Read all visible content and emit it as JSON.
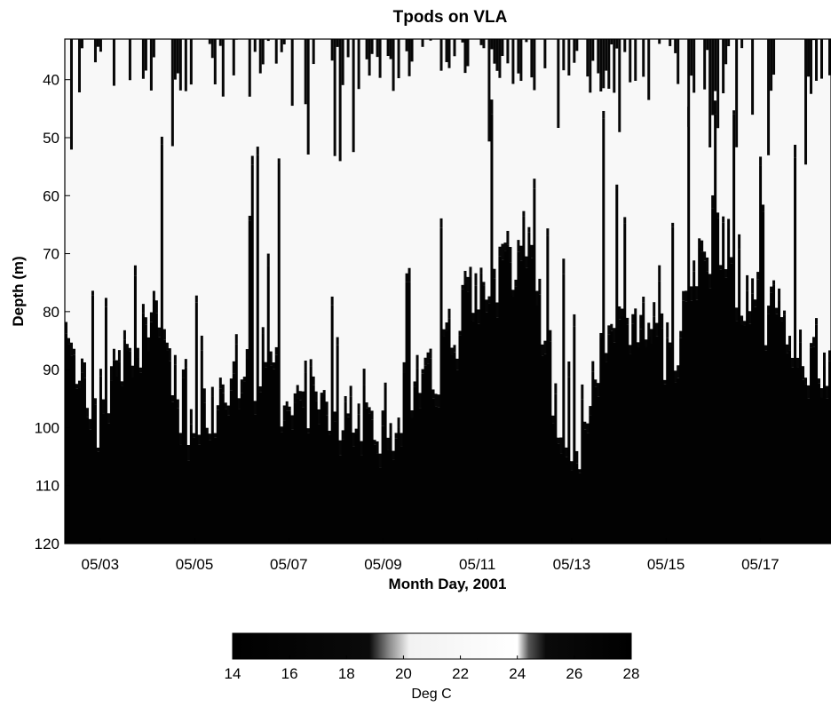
{
  "chart_data": {
    "type": "heatmap",
    "title": "Tpods on VLA",
    "xlabel": "Month Day, 2001",
    "ylabel": "Depth (m)",
    "x_ticks": [
      "05/03",
      "05/05",
      "05/07",
      "05/09",
      "05/11",
      "05/13",
      "05/15",
      "05/17"
    ],
    "xlim": [
      "05/02 06:00",
      "05/18 12:00"
    ],
    "y_ticks": [
      40,
      50,
      60,
      70,
      80,
      90,
      100,
      110,
      120
    ],
    "ylim": [
      33,
      120
    ],
    "y_reversed": true,
    "colorbar": {
      "label": "Deg C",
      "ticks": [
        14,
        16,
        18,
        20,
        22,
        24,
        26,
        28
      ],
      "range": [
        14,
        28
      ],
      "position": "bottom"
    },
    "colormap": [
      {
        "value": 14,
        "color": "#000000"
      },
      {
        "value": 18.8,
        "color": "#0a0a0a"
      },
      {
        "value": 19.5,
        "color": "#8a8a8a"
      },
      {
        "value": 20.2,
        "color": "#f2f2f2"
      },
      {
        "value": 24,
        "color": "#ffffff"
      },
      {
        "value": 24.4,
        "color": "#555555"
      },
      {
        "value": 25,
        "color": "#0a0a0a"
      },
      {
        "value": 28,
        "color": "#000000"
      }
    ],
    "structure": {
      "warm_layer_temp": 22,
      "cold_layer_temp": 15,
      "surface_pulse_temp": 26,
      "thermocline_depth_by_day": [
        {
          "date": "05/02",
          "depth": 78
        },
        {
          "date": "05/03",
          "depth": 98
        },
        {
          "date": "05/04",
          "depth": 84
        },
        {
          "date": "05/05",
          "depth": 100
        },
        {
          "date": "05/06",
          "depth": 90
        },
        {
          "date": "05/07",
          "depth": 95
        },
        {
          "date": "05/08",
          "depth": 98
        },
        {
          "date": "05/09",
          "depth": 100
        },
        {
          "date": "05/10",
          "depth": 92
        },
        {
          "date": "05/11",
          "depth": 80
        },
        {
          "date": "05/12",
          "depth": 70
        },
        {
          "date": "05/13",
          "depth": 105
        },
        {
          "date": "05/14",
          "depth": 80
        },
        {
          "date": "05/15",
          "depth": 88
        },
        {
          "date": "05/16",
          "depth": 70
        },
        {
          "date": "05/17",
          "depth": 80
        },
        {
          "date": "05/18",
          "depth": 88
        }
      ]
    }
  }
}
